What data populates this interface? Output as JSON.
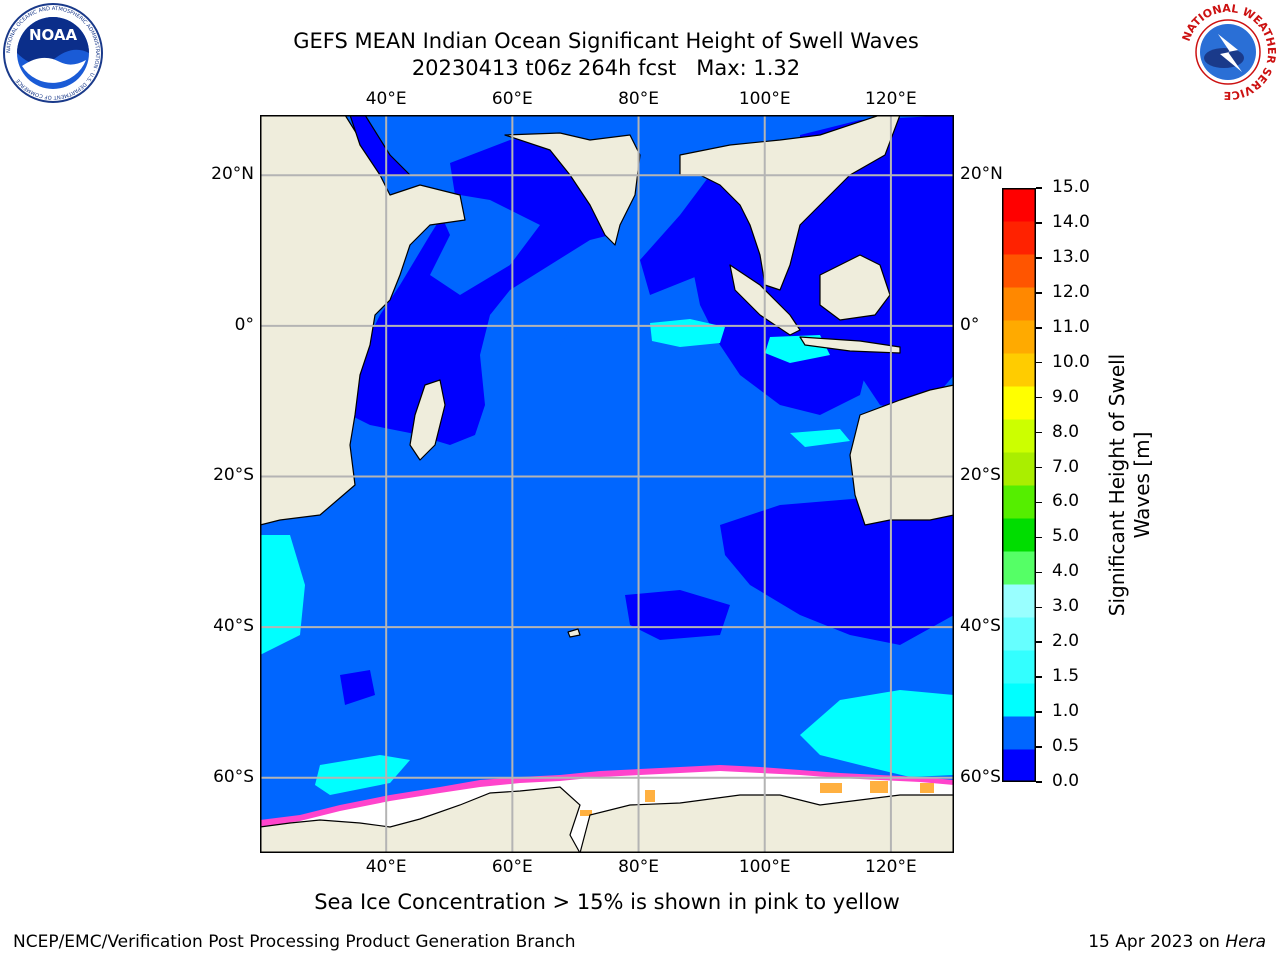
{
  "header": {
    "title_line1": "GEFS MEAN Indian Ocean Significant Height of Swell Waves",
    "title_line2": "20230413 t06z 264h fcst   Max: 1.32"
  },
  "logos": {
    "noaa_text": "NOAA",
    "noaa_ring": "NATIONAL OCEANIC AND ATMOSPHERIC ADMINISTRATION · U.S. DEPARTMENT OF COMMERCE",
    "nws_ring": "NATIONAL WEATHER SERVICE"
  },
  "map": {
    "lon_range": [
      20,
      130
    ],
    "lat_range": [
      -70,
      28
    ],
    "lon_ticks": [
      "40°E",
      "60°E",
      "80°E",
      "100°E",
      "120°E"
    ],
    "lon_values": [
      40,
      60,
      80,
      100,
      120
    ],
    "lat_ticks": [
      "20°N",
      "0°",
      "20°S",
      "40°S",
      "60°S"
    ],
    "lat_values": [
      20,
      0,
      -20,
      -40,
      -60
    ],
    "colors": {
      "land": "#efeddc",
      "ice_white": "#ffffff",
      "sea_dark": "#0000ff",
      "sea_mid": "#0066ff",
      "sea_cyan": "#00ffff",
      "sea_light": "#4dffff",
      "ice_pink": "#ff44cc",
      "ice_orange": "#ffb040",
      "grid": "#b4b4b4"
    }
  },
  "colorbar": {
    "label_line1": "Significant Height of Swell",
    "label_line2": "Waves [m]",
    "ticks": [
      "0.0",
      "0.5",
      "1.0",
      "1.5",
      "2.0",
      "3.0",
      "4.0",
      "5.0",
      "6.0",
      "7.0",
      "8.0",
      "9.0",
      "10.0",
      "11.0",
      "12.0",
      "13.0",
      "14.0",
      "15.0"
    ],
    "colors": [
      "#0000ff",
      "#0066ff",
      "#00ffff",
      "#33ffff",
      "#66ffff",
      "#99ffff",
      "#55ff66",
      "#00dd00",
      "#55ee00",
      "#aaee00",
      "#ccff00",
      "#ffff00",
      "#ffcc00",
      "#ffaa00",
      "#ff8800",
      "#ff5500",
      "#ff2200",
      "#ff0000"
    ]
  },
  "footer": {
    "note": "Sea Ice Concentration > 15% is shown in pink to yellow",
    "credit_left": "NCEP/EMC/Verification Post Processing Product Generation Branch",
    "credit_right_date": "15 Apr 2023 on ",
    "credit_right_host": "Hera"
  }
}
